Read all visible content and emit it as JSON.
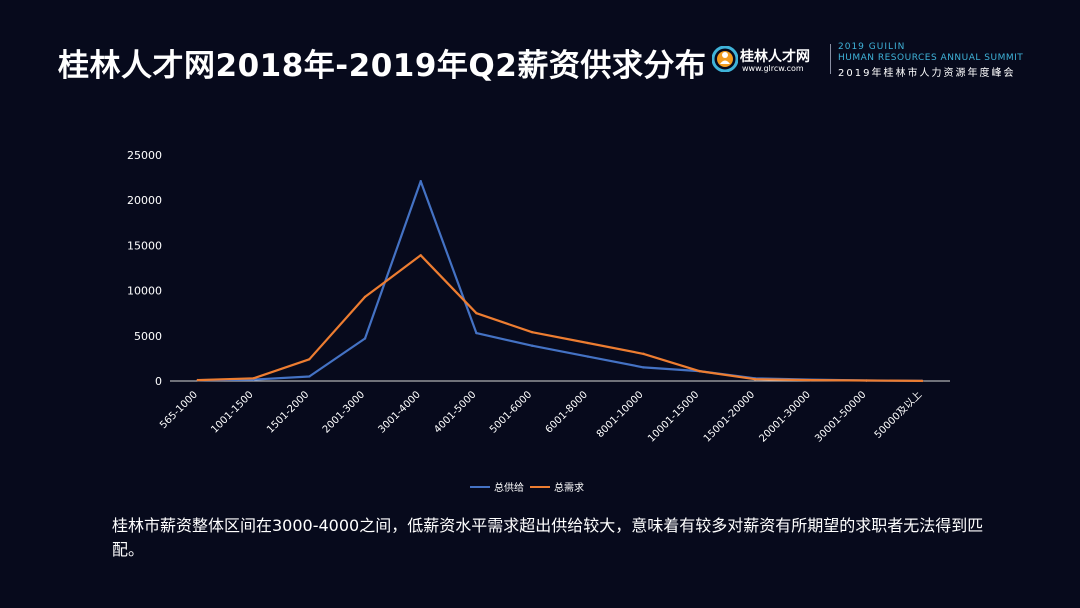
{
  "header": {
    "title": "桂林人才网2018年-2019年Q2薪资供求分布"
  },
  "logo": {
    "name": "桂林人才网",
    "url": "www.glrcw.com",
    "summit_line1": "2019 GUILIN",
    "summit_line2": "HUMAN RESOURCES ANNUAL SUMMIT",
    "summit_line3": "2019年桂林市人力资源年度峰会",
    "accent_color": "#3fb3d9",
    "icon": "person-circle-logo-icon"
  },
  "chart_data": {
    "type": "line",
    "categories": [
      "565-1000",
      "1001-1500",
      "1501-2000",
      "2001-3000",
      "3001-4000",
      "4001-5000",
      "5001-6000",
      "6001-8000",
      "8001-10000",
      "10001-15000",
      "15001-20000",
      "20001-30000",
      "30001-50000",
      "50000及以上"
    ],
    "series": [
      {
        "name": "总供给",
        "color": "#4472c4",
        "values": [
          100,
          150,
          500,
          4700,
          22100,
          5300,
          3900,
          2700,
          1500,
          1100,
          300,
          150,
          50,
          20
        ]
      },
      {
        "name": "总需求",
        "color": "#ed7d31",
        "values": [
          100,
          300,
          2400,
          9300,
          13900,
          7500,
          5400,
          4200,
          3000,
          1100,
          200,
          100,
          50,
          10
        ]
      }
    ],
    "yticks": [
      0,
      5000,
      10000,
      15000,
      20000,
      25000
    ],
    "ylim": [
      0,
      25000
    ],
    "grid": false,
    "legend_position": "bottom-center"
  },
  "caption": "桂林市薪资整体区间在3000-4000之间，低薪资水平需求超出供给较大，意味着有较多对薪资有所期望的求职者无法得到匹配。"
}
